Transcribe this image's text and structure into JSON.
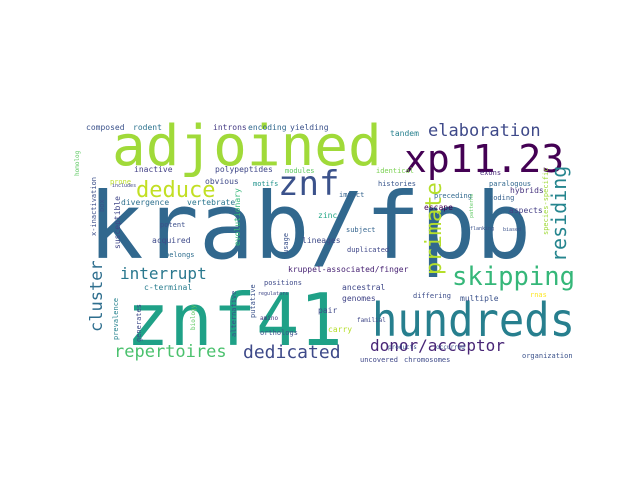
{
  "wordcloud": {
    "palette": [
      "#440154",
      "#46327e",
      "#365c8d",
      "#277f8e",
      "#1fa187",
      "#4ac16d",
      "#a0da39",
      "#fde725"
    ],
    "words": [
      {
        "text": "krab/fpb",
        "color": "#31688e"
      },
      {
        "text": "znf41",
        "color": "#1fa187"
      },
      {
        "text": "adjoined",
        "color": "#a0da39"
      },
      {
        "text": "hundreds",
        "color": "#277f8e"
      },
      {
        "text": "xp11.23",
        "color": "#440154"
      },
      {
        "text": "znf",
        "color": "#3b528b"
      },
      {
        "text": "deduce",
        "color": "#c2df23"
      },
      {
        "text": "elaboration",
        "color": "#3e4989"
      },
      {
        "text": "skipping",
        "color": "#35b779"
      },
      {
        "text": "primate",
        "color": "#b5de2b"
      },
      {
        "text": "residing",
        "color": "#25858e"
      },
      {
        "text": "interrupt",
        "color": "#2a788e"
      },
      {
        "text": "cluster",
        "color": "#2e6e8e"
      },
      {
        "text": "dedicated",
        "color": "#3e4a89"
      },
      {
        "text": "repertoires",
        "color": "#4ac16d"
      },
      {
        "text": "donor/acceptor",
        "color": "#482576"
      },
      {
        "text": "composed",
        "color": "#3b528b"
      },
      {
        "text": "rodent",
        "color": "#2c728e"
      },
      {
        "text": "introns",
        "color": "#443a83"
      },
      {
        "text": "encoding",
        "color": "#31688e"
      },
      {
        "text": "yielding",
        "color": "#3b528b"
      },
      {
        "text": "tandem",
        "color": "#27808e"
      },
      {
        "text": "inactive",
        "color": "#424086"
      },
      {
        "text": "polypeptides",
        "color": "#3f4788"
      },
      {
        "text": "modules",
        "color": "#5ec962"
      },
      {
        "text": "identical",
        "color": "#7ad151"
      },
      {
        "text": "exons",
        "color": "#482878"
      },
      {
        "text": "obvious",
        "color": "#3e4989"
      },
      {
        "text": "motifs",
        "color": "#20928c"
      },
      {
        "text": "histories",
        "color": "#39568c"
      },
      {
        "text": "paralogous",
        "color": "#31688e"
      },
      {
        "text": "prone",
        "color": "#bddf26"
      },
      {
        "text": "divergence",
        "color": "#2d708e"
      },
      {
        "text": "vertebrate",
        "color": "#2a768e"
      },
      {
        "text": "impact",
        "color": "#33638d"
      },
      {
        "text": "preceding",
        "color": "#31688e"
      },
      {
        "text": "escape",
        "color": "#440154"
      },
      {
        "text": "coding",
        "color": "#35608d"
      },
      {
        "text": "hybrids",
        "color": "#46337e"
      },
      {
        "text": "aspects",
        "color": "#433e85"
      },
      {
        "text": "zinc",
        "color": "#21a685"
      },
      {
        "text": "box",
        "color": "#3b528b"
      },
      {
        "text": "susceptible",
        "color": "#404688"
      },
      {
        "text": "acquired",
        "color": "#3e4a89"
      },
      {
        "text": "potent",
        "color": "#3c4f8a"
      },
      {
        "text": "belongs",
        "color": "#2e6d8e"
      },
      {
        "text": "evolutionary",
        "color": "#35b779"
      },
      {
        "text": "lineages",
        "color": "#3e4a89"
      },
      {
        "text": "usage",
        "color": "#3b528b"
      },
      {
        "text": "subject",
        "color": "#33638d"
      },
      {
        "text": "duplicated",
        "color": "#3f4788"
      },
      {
        "text": "kruppel-associated/finger",
        "color": "#482374"
      },
      {
        "text": "x-inactivation",
        "color": "#3c4f8a"
      },
      {
        "text": "c-terminal",
        "color": "#287c8e"
      },
      {
        "text": "prevalence",
        "color": "#26828e"
      },
      {
        "text": "generates",
        "color": "#3e4a89"
      },
      {
        "text": "alternative",
        "color": "#3b528b"
      },
      {
        "text": "positions",
        "color": "#3e4a89"
      },
      {
        "text": "ancestral",
        "color": "#3f4788"
      },
      {
        "text": "genomes",
        "color": "#414487"
      },
      {
        "text": "differing",
        "color": "#3d4d8a"
      },
      {
        "text": "multiple",
        "color": "#3b528b"
      },
      {
        "text": "rnas",
        "color": "#fde725"
      },
      {
        "text": "pair",
        "color": "#3e4989"
      },
      {
        "text": "orthologs",
        "color": "#3b528b"
      },
      {
        "text": "carry",
        "color": "#b5de2b"
      },
      {
        "text": "uncovered",
        "color": "#3f4788"
      },
      {
        "text": "chromosomes",
        "color": "#3e4a89"
      },
      {
        "text": "organization",
        "color": "#3b528b"
      },
      {
        "text": "homolog",
        "color": "#5ec962"
      },
      {
        "text": "putative",
        "color": "#3b528b"
      },
      {
        "text": "amino",
        "color": "#46337e"
      },
      {
        "text": "familial",
        "color": "#3f4788"
      },
      {
        "text": "includes",
        "color": "#3f4788"
      },
      {
        "text": "biology",
        "color": "#5ec962"
      },
      {
        "text": "products",
        "color": "#3b528b"
      },
      {
        "text": "occurred",
        "color": "#3b528b"
      },
      {
        "text": "species-specific",
        "color": "#a0da39"
      },
      {
        "text": "regulators",
        "color": "#3f4788"
      },
      {
        "text": "flanking",
        "color": "#3b528b"
      },
      {
        "text": "biased",
        "color": "#3b528b"
      },
      {
        "text": "patterns",
        "color": "#5ec962"
      }
    ]
  }
}
